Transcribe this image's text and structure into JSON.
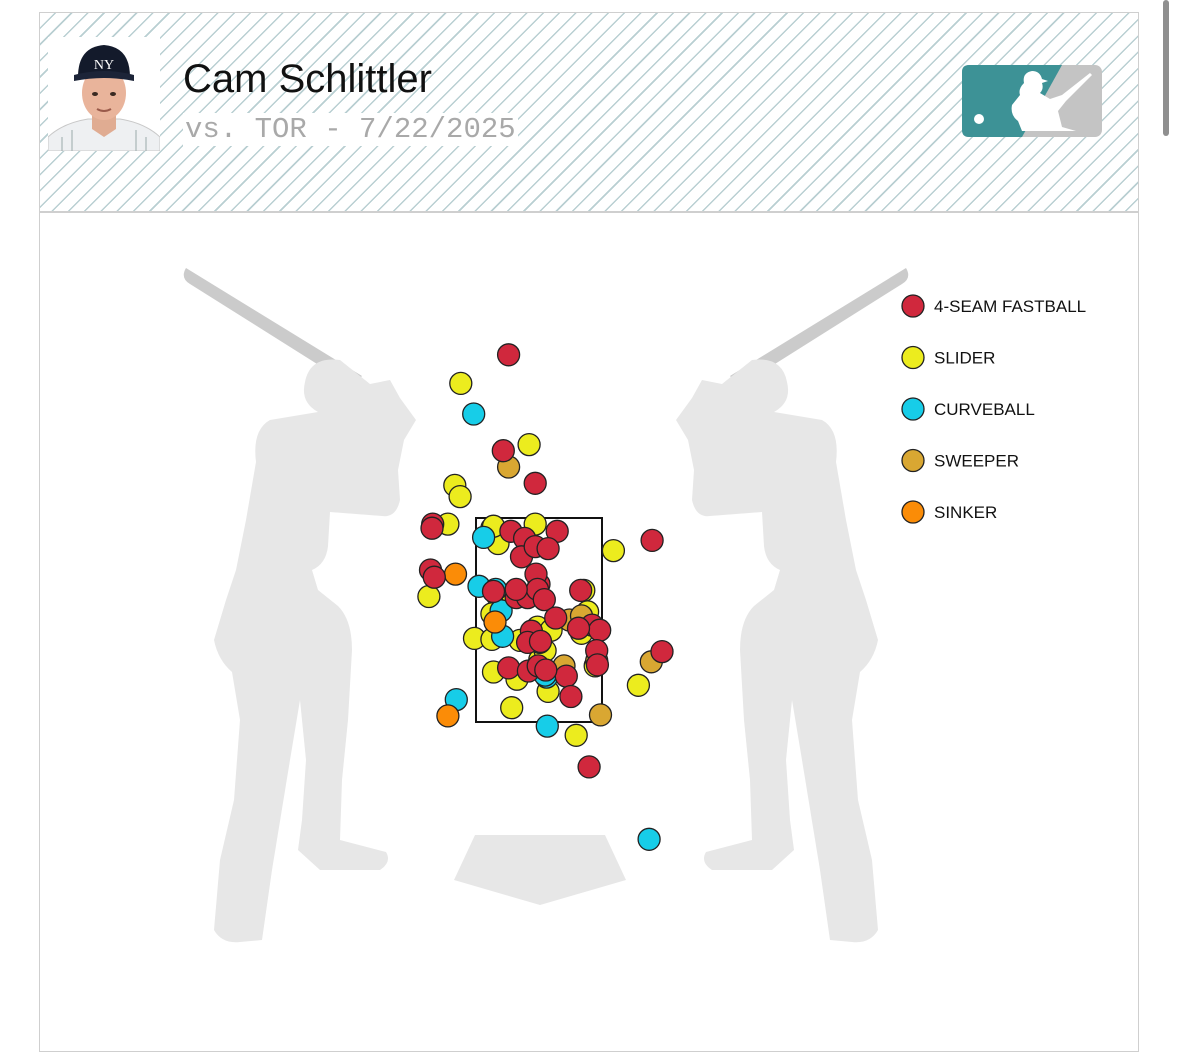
{
  "header": {
    "player_name": "Cam Schlittler",
    "subtitle": "vs. TOR - 7/22/2025"
  },
  "logo": {
    "icon": "mlb-logo-icon",
    "colors": [
      "#3d9296",
      "#c4c4c4"
    ]
  },
  "avatar": {
    "icon": "player-headshot",
    "cap_logo": "NY"
  },
  "chart_data": {
    "type": "scatter",
    "title": "",
    "xlabel": "",
    "ylabel": "",
    "xlim": [
      -2.5,
      2.5
    ],
    "ylim": [
      -0.3,
      5.3
    ],
    "strike_zone": {
      "x": [
        -0.83,
        0.83
      ],
      "z": [
        1.5,
        3.5
      ]
    },
    "legend_position": "top-right",
    "series": [
      {
        "name": "4-SEAM FASTBALL",
        "color": "#d0283d",
        "points": [
          [
            -0.4,
            5.1
          ],
          [
            -0.47,
            4.16
          ],
          [
            -0.05,
            3.84
          ],
          [
            -1.4,
            3.44
          ],
          [
            -1.41,
            3.4
          ],
          [
            -0.37,
            3.37
          ],
          [
            0.24,
            3.37
          ],
          [
            -0.19,
            3.3
          ],
          [
            -0.23,
            3.12
          ],
          [
            -0.05,
            3.22
          ],
          [
            0.12,
            3.2
          ],
          [
            1.49,
            3.28
          ],
          [
            -1.43,
            2.99
          ],
          [
            -1.38,
            2.92
          ],
          [
            -0.6,
            2.78
          ],
          [
            -0.3,
            2.72
          ],
          [
            -0.15,
            2.72
          ],
          [
            0.0,
            2.85
          ],
          [
            -0.04,
            2.95
          ],
          [
            -0.02,
            2.8
          ],
          [
            0.07,
            2.7
          ],
          [
            0.55,
            2.79
          ],
          [
            -0.3,
            2.8
          ],
          [
            0.22,
            2.52
          ],
          [
            0.7,
            2.45
          ],
          [
            0.8,
            2.4
          ],
          [
            0.52,
            2.42
          ],
          [
            -0.1,
            2.39
          ],
          [
            -0.15,
            2.28
          ],
          [
            0.76,
            2.2
          ],
          [
            0.77,
            2.06
          ],
          [
            0.36,
            1.95
          ],
          [
            -0.4,
            2.03
          ],
          [
            -0.14,
            2.0
          ],
          [
            -0.01,
            2.05
          ],
          [
            0.09,
            2.01
          ],
          [
            1.62,
            2.19
          ],
          [
            0.42,
            1.75
          ],
          [
            0.66,
            1.06
          ],
          [
            0.02,
            2.29
          ]
        ]
      },
      {
        "name": "SLIDER",
        "color": "#ecec1e",
        "points": [
          [
            -1.03,
            4.82
          ],
          [
            -0.13,
            4.22
          ],
          [
            -1.11,
            3.82
          ],
          [
            -1.04,
            3.71
          ],
          [
            -1.2,
            3.44
          ],
          [
            -0.62,
            3.4
          ],
          [
            -0.54,
            3.25
          ],
          [
            -0.6,
            3.42
          ],
          [
            -0.05,
            3.44
          ],
          [
            0.98,
            3.18
          ],
          [
            -1.45,
            2.73
          ],
          [
            0.59,
            2.79
          ],
          [
            -0.55,
            2.74
          ],
          [
            -0.43,
            2.74
          ],
          [
            -0.35,
            2.75
          ],
          [
            -0.62,
            2.56
          ],
          [
            0.64,
            2.58
          ],
          [
            0.56,
            2.37
          ],
          [
            -0.02,
            2.43
          ],
          [
            -0.85,
            2.32
          ],
          [
            -0.62,
            2.31
          ],
          [
            -0.25,
            2.3
          ],
          [
            0.16,
            2.4
          ],
          [
            0.74,
            2.05
          ],
          [
            -0.6,
            1.99
          ],
          [
            -0.29,
            1.92
          ],
          [
            0.01,
            2.11
          ],
          [
            1.31,
            1.86
          ],
          [
            0.12,
            1.8
          ],
          [
            -0.36,
            1.64
          ],
          [
            0.49,
            1.37
          ],
          [
            0.08,
            2.2
          ]
        ]
      },
      {
        "name": "CURVEBALL",
        "color": "#17cde8",
        "points": [
          [
            -0.86,
            4.52
          ],
          [
            -0.73,
            3.31
          ],
          [
            -0.79,
            2.83
          ],
          [
            -0.57,
            2.8
          ],
          [
            -0.5,
            2.59
          ],
          [
            -0.48,
            2.34
          ],
          [
            0.01,
            2.28
          ],
          [
            0.1,
            1.94
          ],
          [
            0.08,
            1.96
          ],
          [
            -1.09,
            1.72
          ],
          [
            0.11,
            1.46
          ],
          [
            1.45,
            0.35
          ]
        ]
      },
      {
        "name": "SWEEPER",
        "color": "#d9a732",
        "points": [
          [
            -0.4,
            4.0
          ],
          [
            0.4,
            2.5
          ],
          [
            0.56,
            2.54
          ],
          [
            0.33,
            2.05
          ],
          [
            0.76,
            2.1
          ],
          [
            1.48,
            2.09
          ],
          [
            0.81,
            1.57
          ]
        ]
      },
      {
        "name": "SINKER",
        "color": "#fb8c07",
        "points": [
          [
            -1.1,
            2.95
          ],
          [
            -0.58,
            2.48
          ],
          [
            -1.2,
            1.56
          ]
        ]
      }
    ]
  }
}
